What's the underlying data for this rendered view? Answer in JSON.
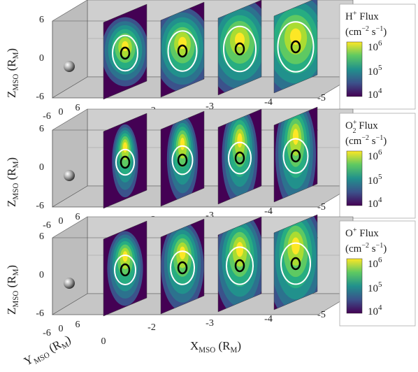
{
  "figure": {
    "z_axis_label": {
      "base": "Z",
      "sub": "MSO",
      "unit_base": "(R",
      "unit_sub": "M",
      "unit_close": ")"
    },
    "y_axis_label": {
      "base": "Y",
      "sub": "MSO",
      "unit_base": "(R",
      "unit_sub": "M",
      "unit_close": ")"
    },
    "x_axis_label": {
      "base": "X",
      "sub": "MSO",
      "unit_base": "(R",
      "unit_sub": "M",
      "unit_close": ")"
    },
    "colors": {
      "background_panel": "#cfcfcf",
      "viridis_low": "#440154",
      "viridis_mid": "#21918c",
      "viridis_high": "#fde725"
    }
  },
  "chart_data": [
    {
      "type": "heatmap",
      "species": "H+",
      "legend_title_line1": "H",
      "legend_title_sup": "+",
      "legend_title_rest": " Flux",
      "legend_units": "(cm",
      "legend_units_exp": "−2",
      "legend_units_tail": " s",
      "legend_units_exp2": "−1",
      "legend_units_close": ")",
      "colorbar_ticks": [
        "10",
        "10",
        "10"
      ],
      "colorbar_tick_exponents": [
        "6",
        "5",
        "4"
      ],
      "z_ticks": [
        "6",
        "0",
        "-6"
      ],
      "y_ticks": [
        "-6",
        "0",
        "6"
      ],
      "x_ticks": [
        "0",
        "-2",
        "-3",
        "-4",
        "-5"
      ],
      "slices_x": [
        -2,
        -3,
        -4,
        -5
      ],
      "log_scale": true
    },
    {
      "type": "heatmap",
      "species": "O2+",
      "legend_title_line1": "O",
      "legend_title_sup": "+",
      "legend_title_sub": "2",
      "legend_title_rest": " Flux",
      "legend_units": "(cm",
      "legend_units_exp": "−2",
      "legend_units_tail": " s",
      "legend_units_exp2": "−1",
      "legend_units_close": ")",
      "colorbar_ticks": [
        "10",
        "10",
        "10"
      ],
      "colorbar_tick_exponents": [
        "6",
        "5",
        "4"
      ],
      "z_ticks": [
        "6",
        "0",
        "-6"
      ],
      "y_ticks": [
        "-6",
        "0",
        "6"
      ],
      "x_ticks": [
        "0",
        "-2",
        "-3",
        "-4",
        "-5"
      ],
      "slices_x": [
        -2,
        -3,
        -4,
        -5
      ],
      "log_scale": true
    },
    {
      "type": "heatmap",
      "species": "O+",
      "legend_title_line1": "O",
      "legend_title_sup": "+",
      "legend_title_rest": " Flux",
      "legend_units": "(cm",
      "legend_units_exp": "−2",
      "legend_units_tail": " s",
      "legend_units_exp2": "−1",
      "legend_units_close": ")",
      "colorbar_ticks": [
        "10",
        "10",
        "10"
      ],
      "colorbar_tick_exponents": [
        "6",
        "5",
        "4"
      ],
      "z_ticks": [
        "6",
        "0",
        "-6"
      ],
      "y_ticks": [
        "-6",
        "0",
        "6"
      ],
      "x_ticks": [
        "0",
        "-2",
        "-3",
        "-4",
        "-5"
      ],
      "slices_x": [
        -2,
        -3,
        -4,
        -5
      ],
      "log_scale": true
    }
  ]
}
